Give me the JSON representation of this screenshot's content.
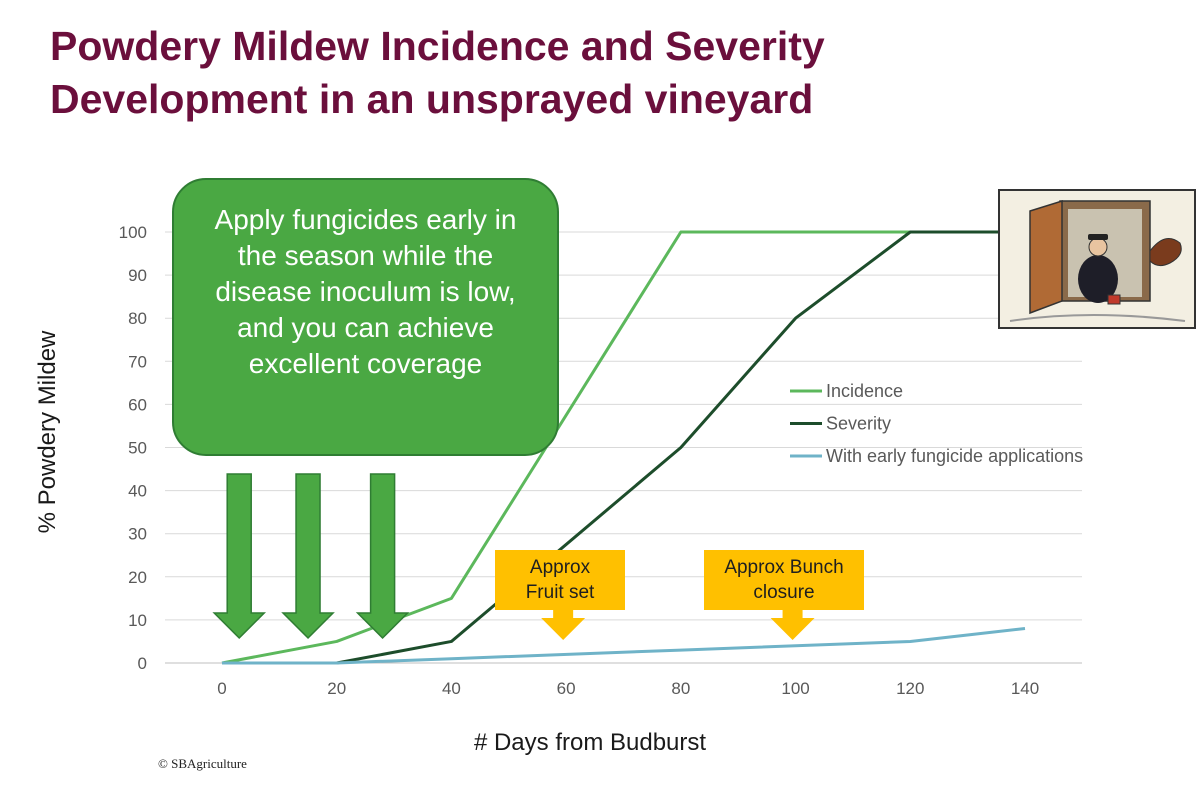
{
  "title": {
    "line1": "Powdery Mildew Incidence and Severity",
    "line2": "Development in an unsprayed vineyard"
  },
  "callout": {
    "text": "Apply fungicides early in the season while the disease inoculum is low, and you can achieve excellent coverage"
  },
  "annotations": {
    "fruit_set": {
      "line1": "Approx",
      "line2": "Fruit set",
      "x": 60
    },
    "bunch_closure": {
      "line1": "Approx Bunch",
      "line2": "closure",
      "x": 100
    }
  },
  "spray_arrows_x": [
    3,
    15,
    28
  ],
  "copyright": "© SBAgriculture",
  "chart_data": {
    "type": "line",
    "xlabel": "# Days from Budburst",
    "ylabel": "% Powdery Mildew",
    "xlim": [
      0,
      140
    ],
    "ylim": [
      0,
      100
    ],
    "xticks": [
      0,
      20,
      40,
      60,
      80,
      100,
      120,
      140
    ],
    "yticks": [
      0,
      10,
      20,
      30,
      40,
      50,
      60,
      70,
      80,
      90,
      100
    ],
    "grid": "horizontal",
    "legend_position": "right",
    "series": [
      {
        "name": "Incidence",
        "color": "#5cb85c",
        "x": [
          0,
          20,
          40,
          80,
          120,
          140
        ],
        "y": [
          0,
          5,
          15,
          100,
          100,
          100
        ]
      },
      {
        "name": "Severity",
        "color": "#1d4d2b",
        "x": [
          0,
          20,
          40,
          80,
          100,
          120,
          140
        ],
        "y": [
          0,
          0,
          5,
          50,
          80,
          100,
          100
        ]
      },
      {
        "name": "With early fungicide applications",
        "color": "#6fb3c8",
        "x": [
          0,
          20,
          40,
          80,
          120,
          140
        ],
        "y": [
          0,
          0,
          1,
          3,
          5,
          8
        ]
      }
    ]
  }
}
